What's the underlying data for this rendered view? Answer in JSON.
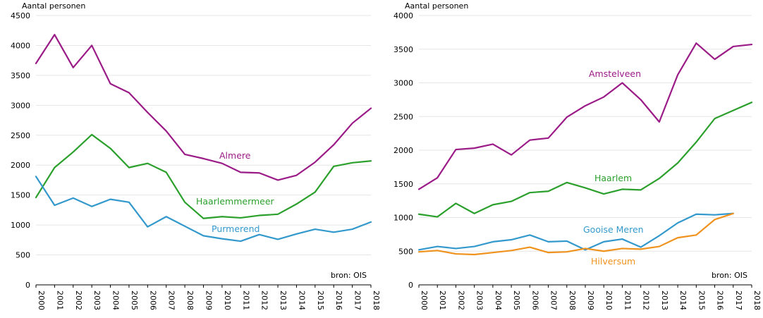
{
  "chart_data": [
    {
      "type": "line",
      "ylabel": "Aantal personen",
      "source": "bron:  OIS",
      "ylim": [
        0,
        4500
      ],
      "yticks": [
        0,
        500,
        1000,
        1500,
        2000,
        2500,
        3000,
        3500,
        4000,
        4500
      ],
      "x": [
        "2000",
        "2001",
        "2002",
        "2003",
        "2004",
        "2005",
        "2006",
        "2007",
        "2008",
        "2009",
        "2010",
        "2011",
        "2012",
        "2013",
        "2014",
        "2015",
        "2016",
        "2017",
        "2018"
      ],
      "grid": "horizontal",
      "series": [
        {
          "name": "Almere",
          "color": "#9b1b87",
          "values": [
            3700,
            4180,
            3630,
            4000,
            3360,
            3210,
            2880,
            2570,
            2180,
            2110,
            2030,
            1880,
            1870,
            1750,
            1830,
            2050,
            2340,
            2700,
            2950
          ]
        },
        {
          "name": "Haarlemmermeer",
          "color": "#2ca02c",
          "values": [
            1460,
            1960,
            2220,
            2510,
            2280,
            1960,
            2030,
            1880,
            1380,
            1110,
            1140,
            1120,
            1160,
            1180,
            1350,
            1550,
            1980,
            2040,
            2070
          ]
        },
        {
          "name": "Purmerend",
          "color": "#3399cc",
          "values": [
            1810,
            1330,
            1450,
            1310,
            1430,
            1380,
            970,
            1140,
            980,
            820,
            770,
            730,
            840,
            760,
            850,
            930,
            880,
            930,
            1050
          ]
        }
      ]
    },
    {
      "type": "line",
      "ylabel": "Aantal personen",
      "source": "bron:  OIS",
      "ylim": [
        0,
        4000
      ],
      "yticks": [
        0,
        500,
        1000,
        1500,
        2000,
        2500,
        3000,
        3500,
        4000
      ],
      "x": [
        "2000",
        "2001",
        "2002",
        "2003",
        "2004",
        "2005",
        "2006",
        "2007",
        "2008",
        "2009",
        "2010",
        "2011",
        "2012",
        "2013",
        "2014",
        "2015",
        "2016",
        "2017",
        "2018"
      ],
      "grid": "horizontal",
      "series": [
        {
          "name": "Amstelveen",
          "color": "#9b1b87",
          "values": [
            1420,
            1590,
            2010,
            2030,
            2090,
            1930,
            2150,
            2180,
            2490,
            2660,
            2790,
            3000,
            2750,
            2420,
            3120,
            3590,
            3350,
            3540,
            3570
          ]
        },
        {
          "name": "Haarlem",
          "color": "#2ca02c",
          "values": [
            1050,
            1010,
            1210,
            1060,
            1190,
            1240,
            1370,
            1390,
            1520,
            1440,
            1350,
            1420,
            1410,
            1580,
            1810,
            2120,
            2470,
            2590,
            2710
          ]
        },
        {
          "name": "Gooise Meren",
          "color": "#3399cc",
          "values": [
            520,
            570,
            540,
            570,
            640,
            670,
            740,
            640,
            650,
            520,
            640,
            680,
            560,
            730,
            920,
            1050,
            1040,
            1060,
            null
          ]
        },
        {
          "name": "Hilversum",
          "color": "#f0921e",
          "values": [
            490,
            510,
            460,
            450,
            480,
            510,
            560,
            480,
            490,
            540,
            500,
            540,
            530,
            570,
            700,
            740,
            970,
            1060,
            null
          ]
        }
      ]
    }
  ]
}
